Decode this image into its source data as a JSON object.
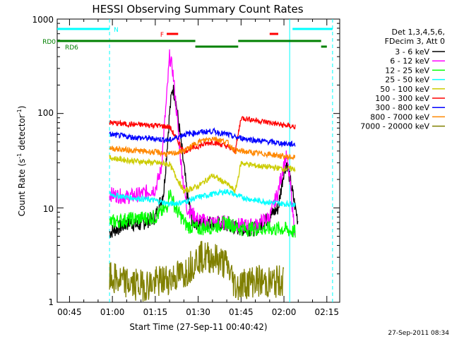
{
  "chart_data": {
    "type": "line",
    "title": "HESSI Observing Summary Count Rates",
    "xlabel": "Start Time (27-Sep-11 00:40:42)",
    "ylabel_main": "Count Rate (s",
    "ylabel_sup1": "-1",
    "ylabel_mid": " detector",
    "ylabel_sup2": "-1",
    "ylabel_end": ")",
    "footer": "27-Sep-2011 08:34",
    "y_scale": "log",
    "ylim": [
      1,
      1000
    ],
    "xlim": [
      "00:40:42",
      "02:19:30"
    ],
    "x_ticks": [
      "00:45",
      "01:00",
      "01:15",
      "01:30",
      "01:45",
      "02:00",
      "02:15"
    ],
    "y_ticks": [
      "1",
      "10",
      "100",
      "1000"
    ],
    "legend_header": [
      "Det 1,3,4,5,6,",
      "FDecim 3, Att 0"
    ],
    "series": [
      {
        "name": "3 - 6 keV",
        "color": "#000000",
        "values": [
          [
            59,
            5.5
          ],
          [
            66,
            7
          ],
          [
            69,
            6.5
          ],
          [
            75,
            8
          ],
          [
            78,
            15
          ],
          [
            80,
            100
          ],
          [
            81,
            190
          ],
          [
            82,
            150
          ],
          [
            84,
            50
          ],
          [
            86,
            15
          ],
          [
            88,
            7
          ],
          [
            95,
            7
          ],
          [
            100,
            6.5
          ],
          [
            105,
            6
          ],
          [
            110,
            6
          ],
          [
            113,
            7
          ],
          [
            118,
            10
          ],
          [
            120,
            25
          ],
          [
            121,
            30
          ],
          [
            124,
            10
          ],
          [
            125,
            7
          ]
        ]
      },
      {
        "name": "6 - 12 keV",
        "color": "#ff00ff",
        "values": [
          [
            59,
            14
          ],
          [
            65,
            13
          ],
          [
            70,
            14
          ],
          [
            75,
            16
          ],
          [
            77,
            25
          ],
          [
            79,
            150
          ],
          [
            80,
            400
          ],
          [
            81,
            300
          ],
          [
            82,
            150
          ],
          [
            84,
            30
          ],
          [
            86,
            10
          ],
          [
            90,
            7.5
          ],
          [
            95,
            7
          ],
          [
            100,
            7
          ],
          [
            105,
            6.5
          ],
          [
            110,
            6.5
          ],
          [
            115,
            8
          ],
          [
            118,
            15
          ],
          [
            120,
            30
          ],
          [
            121,
            35
          ],
          [
            122,
            20
          ],
          [
            124,
            5
          ]
        ]
      },
      {
        "name": "12 - 25 keV",
        "color": "#00ff00",
        "values": [
          [
            59,
            7
          ],
          [
            65,
            7.5
          ],
          [
            75,
            8
          ],
          [
            79,
            10
          ],
          [
            80,
            15
          ],
          [
            82,
            10
          ],
          [
            86,
            6.5
          ],
          [
            90,
            6
          ],
          [
            97,
            6.5
          ],
          [
            100,
            7
          ],
          [
            105,
            6
          ],
          [
            110,
            6
          ],
          [
            120,
            6
          ],
          [
            124,
            5.5
          ]
        ]
      },
      {
        "name": "25 - 50 keV",
        "color": "#00ffff",
        "values": [
          [
            59,
            14
          ],
          [
            65,
            13
          ],
          [
            70,
            12.5
          ],
          [
            75,
            12
          ],
          [
            80,
            11
          ],
          [
            85,
            11.5
          ],
          [
            90,
            13
          ],
          [
            95,
            14
          ],
          [
            100,
            15
          ],
          [
            105,
            13
          ],
          [
            110,
            12
          ],
          [
            115,
            11.5
          ],
          [
            120,
            11
          ],
          [
            124,
            11
          ]
        ]
      },
      {
        "name": "50 - 100 keV",
        "color": "#cccc00",
        "values": [
          [
            59,
            34
          ],
          [
            65,
            32
          ],
          [
            70,
            31
          ],
          [
            75,
            30
          ],
          [
            80,
            29
          ],
          [
            85,
            15
          ],
          [
            90,
            17
          ],
          [
            95,
            22
          ],
          [
            100,
            18
          ],
          [
            103,
            15
          ],
          [
            105,
            30
          ],
          [
            110,
            28
          ],
          [
            115,
            27
          ],
          [
            120,
            26
          ],
          [
            124,
            26
          ]
        ]
      },
      {
        "name": "100 - 300 keV",
        "color": "#ff0000",
        "values": [
          [
            59,
            80
          ],
          [
            65,
            77
          ],
          [
            70,
            76
          ],
          [
            75,
            75
          ],
          [
            80,
            72
          ],
          [
            85,
            40
          ],
          [
            90,
            45
          ],
          [
            95,
            50
          ],
          [
            100,
            45
          ],
          [
            103,
            40
          ],
          [
            105,
            90
          ],
          [
            110,
            85
          ],
          [
            115,
            80
          ],
          [
            120,
            75
          ],
          [
            124,
            72
          ]
        ]
      },
      {
        "name": "300 - 800 keV",
        "color": "#0000ff",
        "values": [
          [
            59,
            60
          ],
          [
            65,
            57
          ],
          [
            70,
            55
          ],
          [
            75,
            54
          ],
          [
            80,
            52
          ],
          [
            85,
            60
          ],
          [
            90,
            63
          ],
          [
            95,
            65
          ],
          [
            100,
            60
          ],
          [
            103,
            56
          ],
          [
            105,
            55
          ],
          [
            110,
            52
          ],
          [
            115,
            50
          ],
          [
            120,
            48
          ],
          [
            124,
            47
          ]
        ]
      },
      {
        "name": "800 - 7000 keV",
        "color": "#ff8800",
        "values": [
          [
            59,
            43
          ],
          [
            65,
            41
          ],
          [
            70,
            40
          ],
          [
            75,
            39
          ],
          [
            80,
            37
          ],
          [
            85,
            40
          ],
          [
            90,
            50
          ],
          [
            95,
            55
          ],
          [
            100,
            50
          ],
          [
            103,
            40
          ],
          [
            105,
            40
          ],
          [
            110,
            38
          ],
          [
            115,
            37
          ],
          [
            120,
            35
          ],
          [
            124,
            34
          ]
        ]
      },
      {
        "name": "7000 - 20000 keV",
        "color": "#808000",
        "values": [
          [
            59,
            1.8
          ],
          [
            65,
            1.6
          ],
          [
            70,
            1.5
          ],
          [
            75,
            1.6
          ],
          [
            85,
            2
          ],
          [
            90,
            3
          ],
          [
            95,
            3
          ],
          [
            100,
            2.5
          ],
          [
            103,
            1.5
          ],
          [
            110,
            1.7
          ],
          [
            115,
            1.6
          ],
          [
            120,
            1.7
          ]
        ]
      }
    ],
    "status_bars": [
      {
        "label": "N",
        "color": "#00ffff",
        "segments": [
          [
            "00:40",
            "00:59"
          ],
          [
            "02:03",
            "02:17"
          ]
        ]
      },
      {
        "label": "F",
        "color": "#ff0000",
        "segments": [
          [
            "01:19",
            "01:23"
          ],
          [
            "01:55",
            "01:58"
          ]
        ]
      },
      {
        "label": "RD0",
        "color": "#008000",
        "segments": [
          [
            "00:40",
            "01:29"
          ],
          [
            "01:44",
            "02:13"
          ]
        ]
      },
      {
        "label": "RD6",
        "color": "#008000",
        "segments": [
          [
            "01:29",
            "01:44"
          ],
          [
            "02:13",
            "02:15"
          ]
        ]
      }
    ],
    "vlines": [
      {
        "at": "00:59",
        "style": "dashed"
      },
      {
        "at": "02:02",
        "style": "solid"
      },
      {
        "at": "02:17",
        "style": "dashed"
      }
    ],
    "grid": false,
    "legend_position": "right"
  }
}
